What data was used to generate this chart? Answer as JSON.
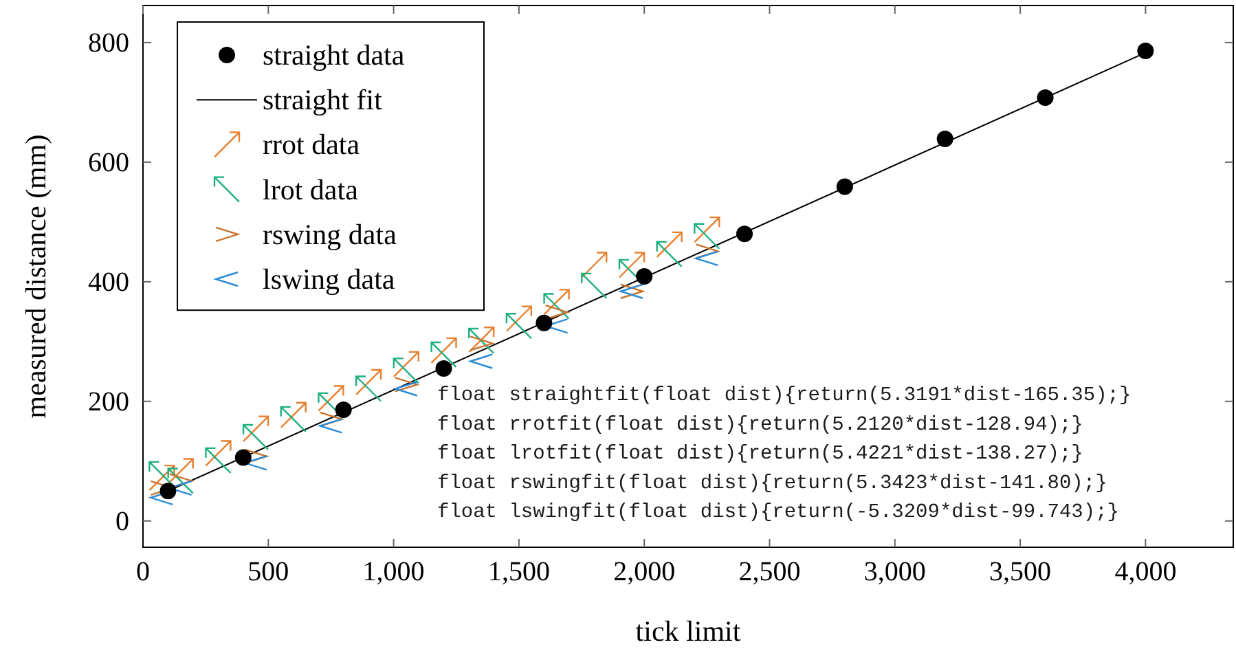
{
  "chart_data": {
    "type": "scatter",
    "xlabel": "tick limit",
    "ylabel": "measured distance (mm)",
    "xlim": [
      0,
      4350
    ],
    "ylim": [
      -44,
      862
    ],
    "xticks": [
      0,
      500,
      {
        "value": 1000,
        "label": "1,000"
      },
      {
        "value": 1500,
        "label": "1,500"
      },
      {
        "value": 2000,
        "label": "2,000"
      },
      {
        "value": 2500,
        "label": "2,500"
      },
      {
        "value": 3000,
        "label": "3,000"
      },
      {
        "value": 3500,
        "label": "3,500"
      },
      {
        "value": 4000,
        "label": "4,000"
      }
    ],
    "yticks": [
      0,
      200,
      400,
      600,
      800
    ],
    "grid": false,
    "legend": "top left",
    "series": [
      {
        "name": "straight data",
        "marker": "circle",
        "color": "#000000",
        "x": [
          100,
          400,
          800,
          1200,
          1600,
          2000,
          2400,
          2800,
          3200,
          3600,
          4000
        ],
        "values": [
          50,
          106,
          186,
          255,
          331,
          409,
          480,
          559,
          639,
          708,
          786
        ]
      },
      {
        "name": "straight fit",
        "type": "line",
        "marker": "none",
        "line_style": "solid",
        "color": "#000000",
        "x": [
          100,
          4000
        ],
        "values": [
          50,
          783
        ]
      },
      {
        "name": "rrot data",
        "marker": "cross",
        "color": "#e8802f",
        "x": [
          75,
          150,
          300,
          450,
          600,
          750,
          900,
          1050,
          1200,
          1350,
          1500,
          1650,
          1800,
          1950,
          2100,
          2250
        ],
        "values": [
          72,
          83,
          113,
          154,
          177,
          205,
          232,
          262,
          285,
          303,
          338,
          366,
          428,
          428,
          462,
          487
        ]
      },
      {
        "name": "lrot data",
        "marker": "cross",
        "color": "#1fb07f",
        "x": [
          75,
          150,
          300,
          450,
          600,
          750,
          900,
          1050,
          1200,
          1350,
          1500,
          1650,
          1800,
          1950,
          2100,
          2250
        ],
        "values": [
          78,
          67,
          101,
          140,
          170,
          193,
          221,
          251,
          278,
          301,
          326,
          359,
          393,
          416,
          446,
          476
        ]
      },
      {
        "name": "rswing data",
        "marker": "cross",
        "color": "#c8742d",
        "x": [
          75,
          150,
          450,
          750,
          1050,
          1350,
          1650,
          1950,
          2250
        ],
        "values": [
          55,
          67,
          108,
          170,
          228,
          297,
          349,
          384,
          451
        ]
      },
      {
        "name": "lswing data",
        "marker": "cross",
        "color": "#2a8bd6",
        "x": [
          75,
          150,
          450,
          750,
          1050,
          1350,
          1650,
          1950,
          2250
        ],
        "values": [
          39,
          55,
          97,
          159,
          221,
          267,
          326,
          384,
          439
        ]
      }
    ],
    "annotations": [
      "float straightfit(float dist){return(5.3191*dist-165.35);}",
      "float rrotfit(float dist){return(5.2120*dist-128.94);}",
      "float lrotfit(float dist){return(5.4221*dist-138.27);}",
      "float rswingfit(float dist){return(5.3423*dist-141.80);}",
      "float lswingfit(float dist){return(-5.3209*dist-99.743);}"
    ]
  }
}
